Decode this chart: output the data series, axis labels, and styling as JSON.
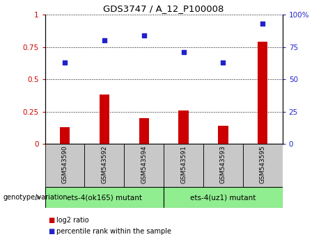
{
  "title": "GDS3747 / A_12_P100008",
  "categories": [
    "GSM543590",
    "GSM543592",
    "GSM543594",
    "GSM543591",
    "GSM543593",
    "GSM543595"
  ],
  "bar_values": [
    0.13,
    0.38,
    0.2,
    0.26,
    0.14,
    0.79
  ],
  "dot_values_pct": [
    63,
    80,
    84,
    71,
    63,
    93
  ],
  "bar_color": "#cc0000",
  "dot_color": "#2222cc",
  "group1_label": "ets-4(ok165) mutant",
  "group2_label": "ets-4(uz1) mutant",
  "group1_indices": [
    0,
    1,
    2
  ],
  "group2_indices": [
    3,
    4,
    5
  ],
  "group_bg_color": "#90ee90",
  "tick_bg_color": "#c8c8c8",
  "legend_label1": "log2 ratio",
  "legend_label2": "percentile rank within the sample",
  "ylim_left": [
    0,
    1.0
  ],
  "ylim_right": [
    0,
    100
  ],
  "yticks_left": [
    0,
    0.25,
    0.5,
    0.75,
    1.0
  ],
  "ytick_labels_left": [
    "0",
    "0.25",
    "0.5",
    "0.75",
    "1"
  ],
  "yticks_right": [
    0,
    25,
    50,
    75,
    100
  ],
  "ytick_labels_right": [
    "0",
    "25",
    "50",
    "75",
    "100%"
  ],
  "genotype_label": "genotype/variation"
}
